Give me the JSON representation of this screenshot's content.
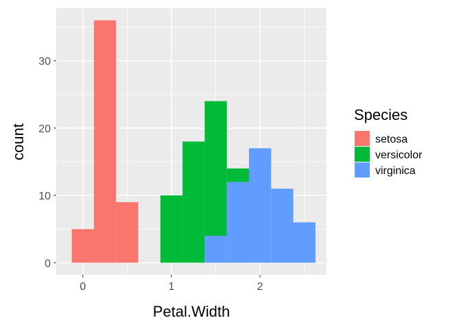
{
  "chart_data": {
    "type": "bar",
    "subtype": "stacked-histogram",
    "title": "",
    "xlabel": "Petal.Width",
    "ylabel": "count",
    "xlim": [
      -0.3,
      2.75
    ],
    "ylim": [
      -1.8,
      37.8
    ],
    "x_ticks": [
      0,
      1,
      2
    ],
    "x_tick_labels": [
      "0",
      "1",
      "2"
    ],
    "y_ticks": [
      0,
      10,
      20,
      30
    ],
    "y_tick_labels": [
      "0",
      "10",
      "20",
      "30"
    ],
    "bin_width": 0.25,
    "bins": [
      {
        "x0": -0.125,
        "x1": 0.125
      },
      {
        "x0": 0.125,
        "x1": 0.375
      },
      {
        "x0": 0.375,
        "x1": 0.625
      },
      {
        "x0": 0.625,
        "x1": 0.875
      },
      {
        "x0": 0.875,
        "x1": 1.125
      },
      {
        "x0": 1.125,
        "x1": 1.375
      },
      {
        "x0": 1.375,
        "x1": 1.625
      },
      {
        "x0": 1.625,
        "x1": 1.875
      },
      {
        "x0": 1.875,
        "x1": 2.125
      },
      {
        "x0": 2.125,
        "x1": 2.375
      },
      {
        "x0": 2.375,
        "x1": 2.625
      }
    ],
    "series": [
      {
        "name": "setosa",
        "color": "#F8766D",
        "values": [
          5,
          36,
          9,
          0,
          0,
          0,
          0,
          0,
          0,
          0,
          0
        ]
      },
      {
        "name": "versicolor",
        "color": "#00BA38",
        "values": [
          0,
          0,
          0,
          0,
          10,
          18,
          20,
          2,
          0,
          0,
          0
        ]
      },
      {
        "name": "virginica",
        "color": "#619CFF",
        "values": [
          0,
          0,
          0,
          0,
          0,
          0,
          4,
          12,
          17,
          11,
          6
        ]
      }
    ],
    "grid": true,
    "panel_background": "#EBEBEB",
    "grid_color": "#FFFFFF",
    "legend": {
      "title": "Species",
      "position": "right"
    }
  }
}
